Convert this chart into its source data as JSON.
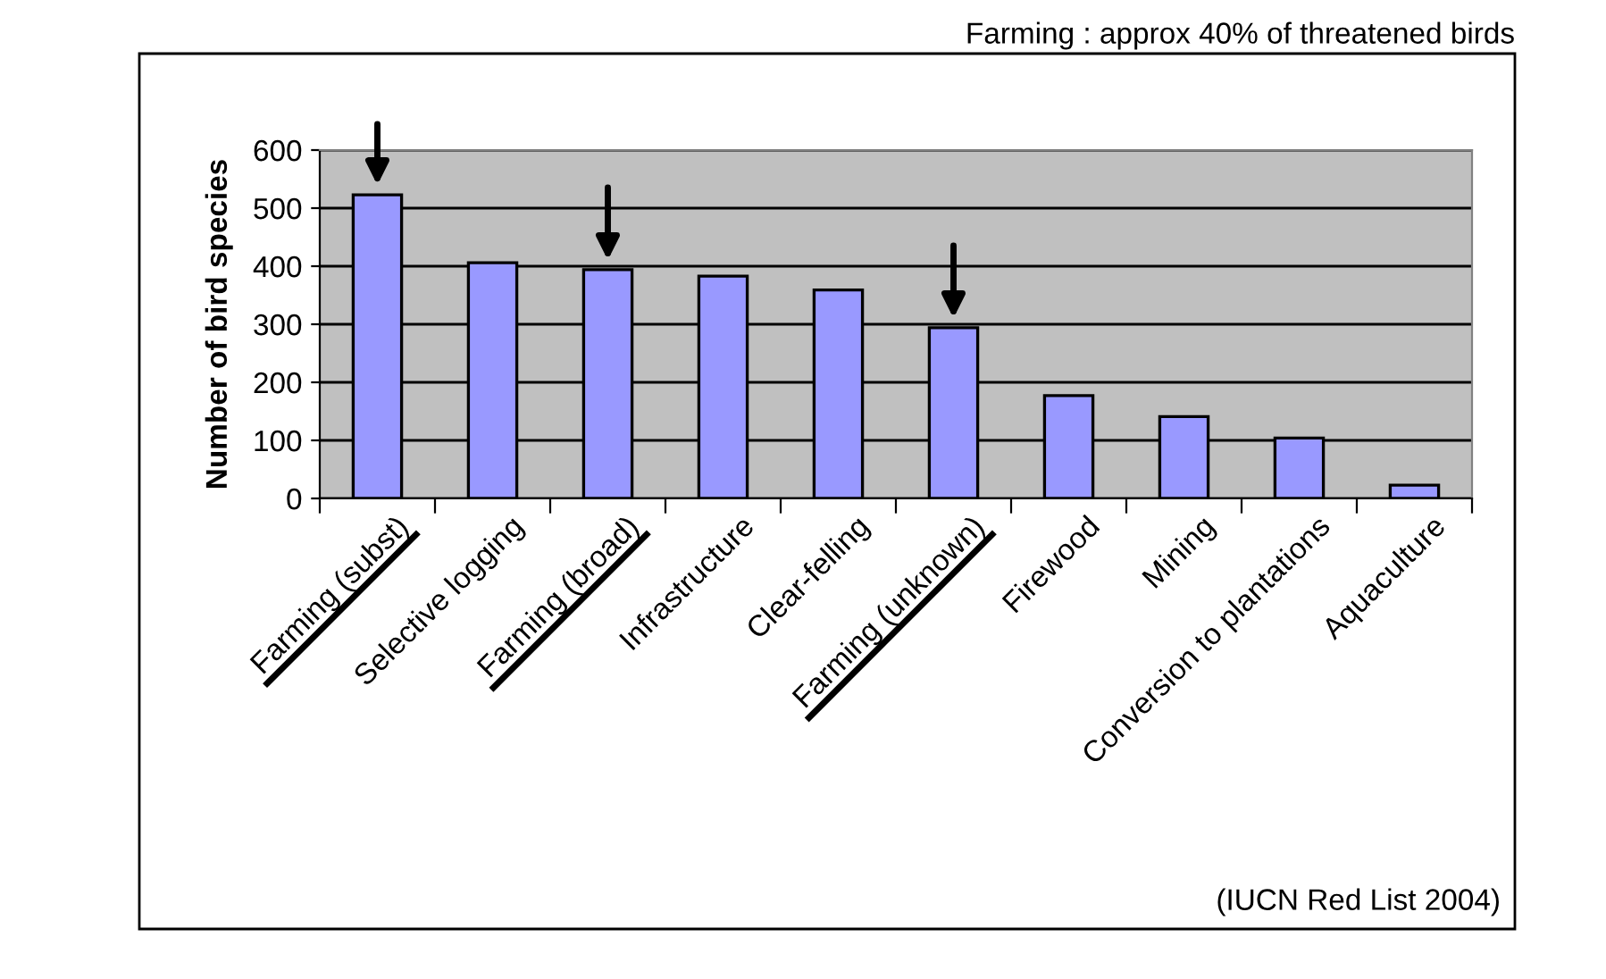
{
  "chart_data": {
    "type": "bar",
    "title": "Farming : approx 40% of threatened birds",
    "ylabel": "Number of bird species",
    "categories": [
      "Farming (subst)",
      "Selective logging",
      "Farming (broad)",
      "Infrastructure",
      "Clear-felling",
      "Farming (unknown)",
      "Firewood",
      "Mining",
      "Conversion to plantations",
      "Aquaculture"
    ],
    "values": [
      523,
      406,
      394,
      383,
      359,
      294,
      177,
      141,
      104,
      23
    ],
    "color": "#9999ff",
    "ylim": [
      0,
      600
    ],
    "yticks": [
      0,
      100,
      200,
      300,
      400,
      500,
      600
    ],
    "grid": "y",
    "annotations": [
      "(IUCN Red List 2004)"
    ]
  }
}
